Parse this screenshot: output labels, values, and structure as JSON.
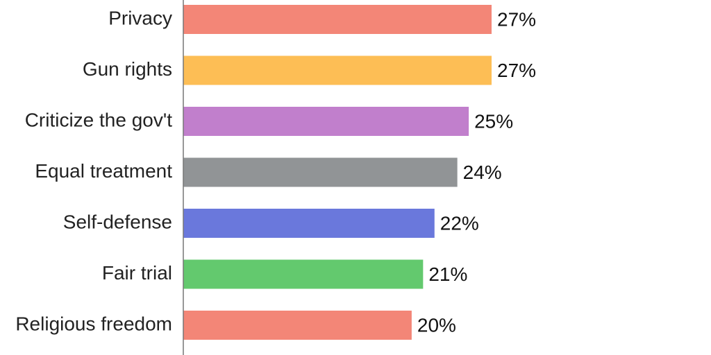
{
  "chart_data": {
    "type": "bar",
    "orientation": "horizontal",
    "categories": [
      "Privacy",
      "Gun rights",
      "Criticize the gov't",
      "Equal treatment",
      "Self-defense",
      "Fair trial",
      "Religious freedom"
    ],
    "values": [
      27,
      27,
      25,
      24,
      22,
      21,
      20
    ],
    "value_labels": [
      "27%",
      "27%",
      "25%",
      "24%",
      "22%",
      "21%",
      "20%"
    ],
    "bar_colors": [
      "#F38677",
      "#FDBE55",
      "#C17FCC",
      "#919496",
      "#6A78DC",
      "#63C96E",
      "#F38677"
    ],
    "axis_color": "#777777",
    "title": "",
    "xlabel": "",
    "ylabel": "",
    "xlim": [
      0,
      45
    ],
    "grid": false,
    "legend": "none"
  }
}
